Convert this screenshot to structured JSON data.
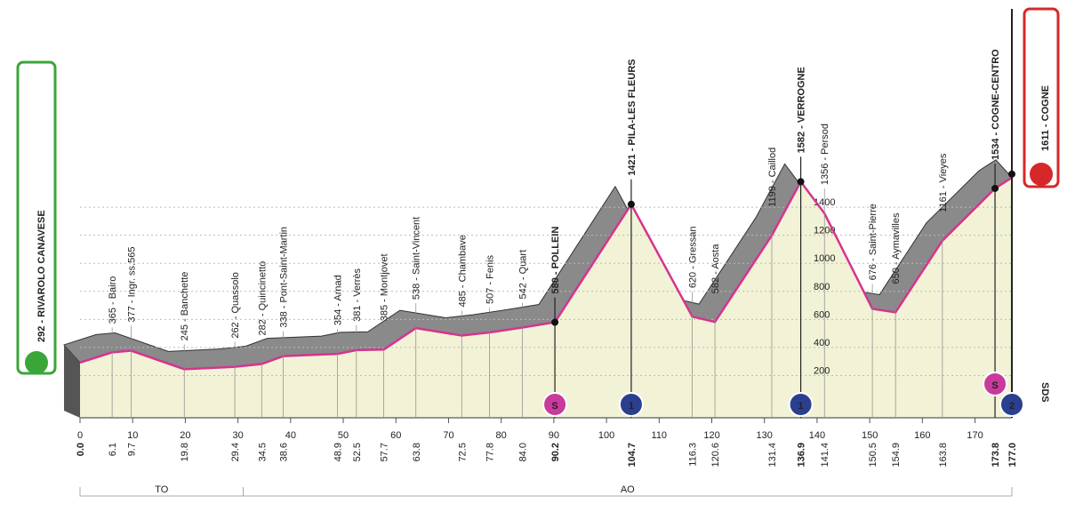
{
  "chart_data": {
    "type": "area",
    "x": [
      {
        "value": 0,
        "label": "0.0"
      },
      6.1,
      9.7,
      19.8,
      29.4,
      34.5,
      38.6,
      48.9,
      52.5,
      57.7,
      63.8,
      72.5,
      77.8,
      {
        "value": 84,
        "label": "84.0"
      },
      90.2,
      104.7,
      116.3,
      120.6,
      131.4,
      136.9,
      141.4,
      150.5,
      154.9,
      163.8,
      173.8,
      {
        "value": 177,
        "label": "177.0"
      }
    ],
    "values": [
      292,
      365,
      377,
      245,
      262,
      282,
      338,
      354,
      381,
      385,
      538,
      485,
      507,
      542,
      580,
      1421,
      620,
      582,
      1199,
      1582,
      1356,
      676,
      650,
      1161,
      1534,
      1611
    ],
    "value_labels": [
      "292 - RIVAROLO CANAVESE",
      "365 - Bairo",
      "377 - Ingr. ss.565",
      "245 - Banchette",
      "262 - Quassolo",
      "282 - Quincinetto",
      "338 - Pont-Saint-Martin",
      "354 - Arnad",
      "381 - Verrès",
      "385 - Montjovet",
      "538 - Saint-Vincent",
      "485 - Chambave",
      "507 - Fenis",
      "542 - Quart",
      "580 - POLLEIN",
      "1421 - PILA-LES FLEURS",
      "620 - Gressan",
      "582 - Aosta",
      "1199 - Caillod",
      "1582 - VERROGNE",
      "1356 - Persod",
      "676 - Saint-Pierre",
      "650 - Aymavilles",
      "1161 - Vieyes",
      "1534 - COGNE-CENTRO",
      "1611 - COGNE"
    ],
    "highlight": [
      14,
      15,
      19,
      24
    ],
    "xlim": [
      0,
      177
    ],
    "xticks": [
      0,
      10,
      20,
      30,
      40,
      50,
      60,
      70,
      80,
      90,
      100,
      110,
      120,
      130,
      140,
      150,
      160,
      170
    ],
    "ylim": [
      0,
      1800
    ],
    "yticks": [
      200,
      400,
      600,
      800,
      1000,
      1200,
      1400
    ],
    "grid": true,
    "color": "#d6338f",
    "sprints": [
      14,
      24
    ],
    "sprint_label": "S",
    "climbs": [
      {
        "at": 15,
        "label": "1"
      },
      {
        "at": 19,
        "label": "1"
      },
      {
        "at": 25,
        "label": "2"
      }
    ],
    "finish_note": "SDS",
    "zones": [
      {
        "label": "TO",
        "from": 0,
        "to": 31
      },
      {
        "label": "AO",
        "from": 31,
        "to": 177
      }
    ]
  }
}
